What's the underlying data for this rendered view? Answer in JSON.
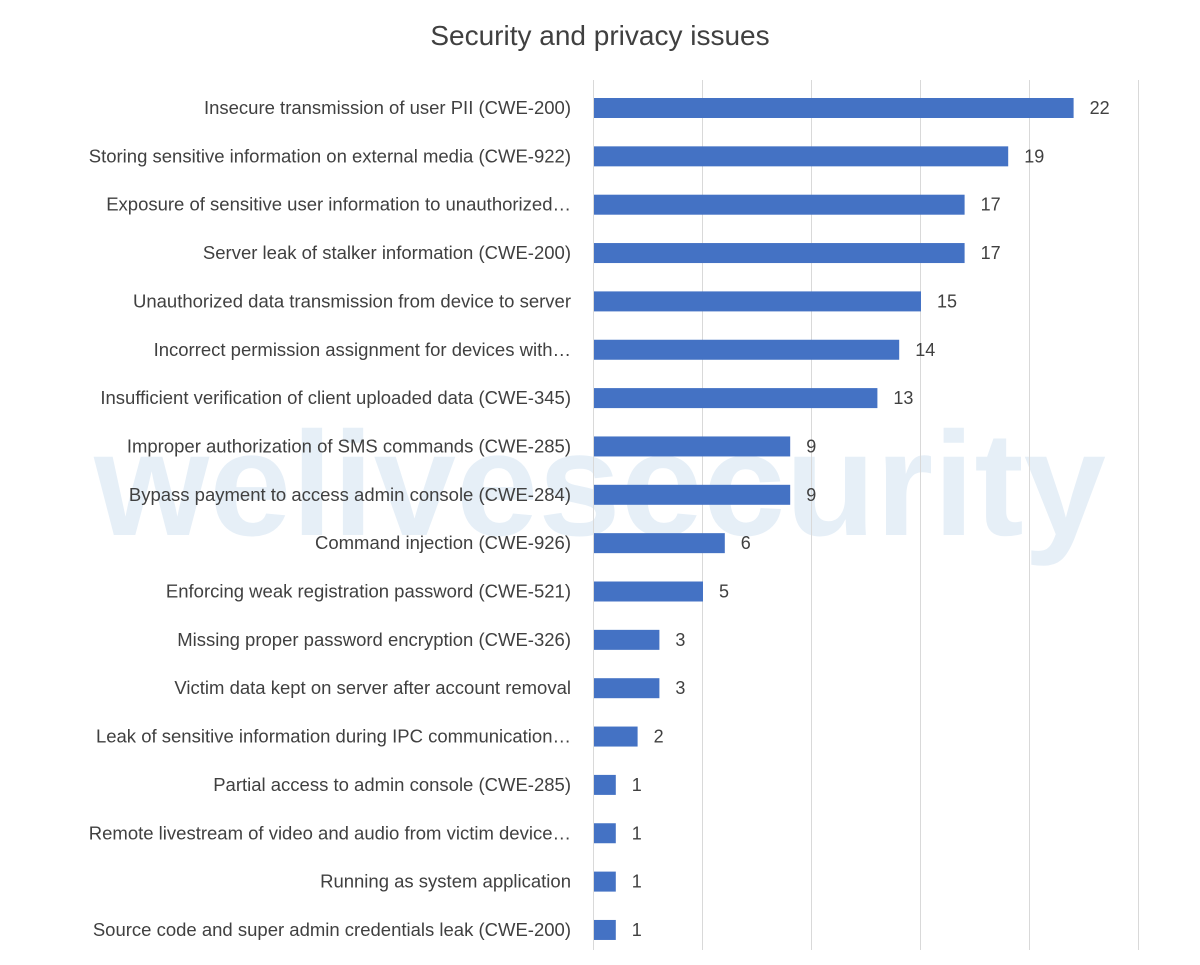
{
  "watermark": "welivesecurity",
  "chart_data": {
    "type": "bar",
    "orientation": "horizontal",
    "title": "Security and privacy issues",
    "xlabel": "",
    "ylabel": "",
    "xlim": [
      0,
      25
    ],
    "grid": true,
    "legend": "none",
    "bar_color": "#4472c4",
    "categories": [
      "Insecure transmission of user PII (CWE-200)",
      "Storing sensitive information on external media (CWE-922)",
      "Exposure of sensitive user information to unauthorized…",
      "Server leak of stalker information (CWE-200)",
      "Unauthorized data transmission from device to server",
      "Incorrect permission assignment for devices with…",
      "Insufficient verification of client uploaded data (CWE-345)",
      "Improper authorization of SMS commands (CWE-285)",
      "Bypass payment to access admin console (CWE-284)",
      "Command injection (CWE-926)",
      "Enforcing weak registration password (CWE-521)",
      "Missing proper password encryption (CWE-326)",
      "Victim data kept on server after account removal",
      "Leak of sensitive information during IPC communication…",
      "Partial access to admin console (CWE-285)",
      "Remote livestream of video and audio from victim device…",
      "Running as system application",
      "Source code and super admin credentials leak (CWE-200)"
    ],
    "values": [
      22,
      19,
      17,
      17,
      15,
      14,
      13,
      9,
      9,
      6,
      5,
      3,
      3,
      2,
      1,
      1,
      1,
      1
    ]
  }
}
